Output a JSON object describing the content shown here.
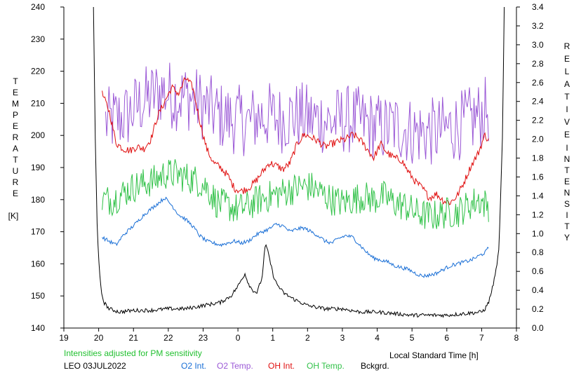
{
  "chart_data": {
    "type": "line",
    "x_ticks": [
      "19",
      "20",
      "21",
      "22",
      "23",
      "0",
      "1",
      "2",
      "3",
      "4",
      "5",
      "6",
      "7",
      "8"
    ],
    "xlabel": "Local Standard Time [h]",
    "xlim": [
      19,
      32
    ],
    "y_left": {
      "label_letters": [
        "T",
        "E",
        "M",
        "P",
        "E",
        "R",
        "A",
        "T",
        "U",
        "R",
        "E"
      ],
      "unit": "[K]",
      "lim": [
        140,
        240
      ],
      "ticks": [
        "140",
        "150",
        "160",
        "170",
        "180",
        "190",
        "200",
        "210",
        "220",
        "230",
        "240"
      ]
    },
    "y_right": {
      "label_word1": [
        "R",
        "E",
        "L",
        "A",
        "T",
        "I",
        "V",
        "E"
      ],
      "label_word2": [
        "I",
        "N",
        "T",
        "E",
        "N",
        "S",
        "I",
        "T",
        "Y"
      ],
      "lim": [
        0,
        3.4
      ],
      "ticks": [
        "0.0",
        "0.2",
        "0.4",
        "0.6",
        "0.8",
        "1.0",
        "1.2",
        "1.4",
        "1.6",
        "1.8",
        "2.0",
        "2.2",
        "2.4",
        "2.6",
        "2.8",
        "3.0",
        "3.2",
        "3.4"
      ]
    },
    "note": "Intensities adjusted for PM sensitivity",
    "station": "LEO 03JUL2022",
    "legend": [
      {
        "label": "O2 Int.",
        "color": "#1a6fd6"
      },
      {
        "label": "O2 Temp.",
        "color": "#9b59d6"
      },
      {
        "label": "OH Int.",
        "color": "#e01010"
      },
      {
        "label": "OH Temp.",
        "color": "#33c24a"
      },
      {
        "label": "Bckgrd.",
        "color": "#000000"
      }
    ],
    "colors": {
      "note": "#22c030",
      "o2_int": "#1a6fd6",
      "o2_temp": "#9b59d6",
      "oh_int": "#e01010",
      "oh_temp": "#33c24a",
      "bckgrd": "#000000"
    },
    "series": [
      {
        "key": "o2_temp",
        "axis": "left",
        "color": "#9b59d6",
        "noise": 11,
        "x": [
          20.2,
          20.5,
          20.8,
          21.0,
          21.2,
          21.5,
          21.8,
          22.0,
          22.3,
          22.6,
          22.9,
          23.2,
          23.5,
          23.8,
          24.0,
          24.3,
          24.6,
          24.9,
          25.2,
          25.5,
          25.8,
          26.1,
          26.4,
          26.7,
          27.0,
          27.3,
          27.6,
          27.9,
          28.2,
          28.5,
          28.8,
          29.1,
          29.4,
          29.7,
          30.0,
          30.3,
          30.6,
          30.9,
          31.2
        ],
        "y": [
          204,
          205,
          206,
          208,
          210,
          212,
          214,
          213,
          212,
          212,
          210,
          208,
          206,
          205,
          205,
          204,
          206,
          206,
          205,
          206,
          206,
          205,
          205,
          204,
          205,
          205,
          204,
          203,
          202,
          203,
          202,
          201,
          201,
          201,
          202,
          203,
          204,
          206,
          208
        ]
      },
      {
        "key": "oh_int",
        "axis": "right",
        "color": "#e01010",
        "noise": 0.04,
        "x": [
          20.1,
          20.3,
          20.5,
          20.7,
          20.9,
          21.1,
          21.3,
          21.5,
          21.7,
          21.9,
          22.1,
          22.3,
          22.5,
          22.7,
          22.9,
          23.1,
          23.3,
          23.5,
          23.7,
          23.9,
          24.1,
          24.3,
          24.5,
          24.7,
          24.9,
          25.1,
          25.3,
          25.5,
          25.7,
          25.9,
          26.1,
          26.3,
          26.5,
          26.7,
          26.9,
          27.1,
          27.3,
          27.5,
          27.7,
          27.9,
          28.1,
          28.3,
          28.5,
          28.7,
          28.9,
          29.1,
          29.3,
          29.5,
          29.7,
          29.9,
          30.1,
          30.3,
          30.5,
          30.7,
          30.9,
          31.1,
          31.2
        ],
        "y": [
          2.48,
          2.3,
          1.96,
          1.9,
          1.88,
          1.92,
          1.9,
          2.0,
          2.25,
          2.4,
          2.55,
          2.48,
          2.65,
          2.55,
          2.2,
          1.9,
          1.75,
          1.7,
          1.62,
          1.48,
          1.45,
          1.48,
          1.55,
          1.65,
          1.75,
          1.72,
          1.68,
          1.75,
          1.95,
          2.05,
          2.02,
          1.98,
          1.92,
          1.95,
          1.98,
          2.0,
          2.05,
          2.0,
          1.9,
          1.8,
          1.95,
          1.85,
          1.8,
          1.78,
          1.65,
          1.55,
          1.48,
          1.38,
          1.42,
          1.35,
          1.33,
          1.4,
          1.55,
          1.72,
          1.85,
          2.05,
          1.98
        ]
      },
      {
        "key": "oh_temp",
        "axis": "left",
        "color": "#33c24a",
        "noise": 5,
        "x": [
          20.1,
          20.4,
          20.7,
          21.0,
          21.3,
          21.6,
          21.9,
          22.2,
          22.5,
          22.8,
          23.1,
          23.4,
          23.7,
          24.0,
          24.3,
          24.6,
          24.9,
          25.2,
          25.5,
          25.8,
          26.1,
          26.4,
          26.7,
          27.0,
          27.3,
          27.6,
          27.9,
          28.2,
          28.5,
          28.8,
          29.1,
          29.4,
          29.7,
          30.0,
          30.3,
          30.6,
          30.9,
          31.2
        ],
        "y": [
          180,
          180,
          182,
          184,
          185,
          186,
          188,
          188,
          187,
          186,
          184,
          179,
          178,
          177,
          178,
          180,
          181,
          182,
          183,
          184,
          184,
          182,
          180,
          179,
          180,
          181,
          180,
          181,
          179,
          178,
          176,
          175,
          175,
          176,
          176,
          178,
          180,
          178
        ]
      },
      {
        "key": "o2_int",
        "axis": "right",
        "color": "#1a6fd6",
        "noise": 0.02,
        "x": [
          20.1,
          20.3,
          20.5,
          20.7,
          20.9,
          21.1,
          21.3,
          21.5,
          21.7,
          21.9,
          22.1,
          22.3,
          22.5,
          22.7,
          22.9,
          23.1,
          23.3,
          23.5,
          23.7,
          23.9,
          24.1,
          24.3,
          24.5,
          24.7,
          24.9,
          25.1,
          25.3,
          25.5,
          25.7,
          25.9,
          26.1,
          26.3,
          26.5,
          26.7,
          26.9,
          27.1,
          27.3,
          27.5,
          27.7,
          27.9,
          28.1,
          28.3,
          28.5,
          28.7,
          28.9,
          29.1,
          29.3,
          29.5,
          29.7,
          29.9,
          30.1,
          30.3,
          30.5,
          30.7,
          30.9,
          31.1,
          31.2
        ],
        "y": [
          0.96,
          0.92,
          0.88,
          0.98,
          1.05,
          1.12,
          1.2,
          1.26,
          1.32,
          1.38,
          1.3,
          1.2,
          1.15,
          1.08,
          0.98,
          0.92,
          0.9,
          0.88,
          0.9,
          0.92,
          0.9,
          0.92,
          0.98,
          1.02,
          1.05,
          1.1,
          1.08,
          1.02,
          1.05,
          1.06,
          1.02,
          0.98,
          0.92,
          0.9,
          0.95,
          0.98,
          0.96,
          0.88,
          0.8,
          0.74,
          0.72,
          0.7,
          0.66,
          0.64,
          0.62,
          0.58,
          0.55,
          0.56,
          0.58,
          0.62,
          0.66,
          0.68,
          0.7,
          0.72,
          0.76,
          0.8,
          0.85
        ]
      },
      {
        "key": "bckgrd",
        "axis": "left",
        "color": "#000000",
        "noise": 0.6,
        "x": [
          19.85,
          19.9,
          19.96,
          20.02,
          20.08,
          20.15,
          20.3,
          20.6,
          21.0,
          21.5,
          22.0,
          22.5,
          23.0,
          23.5,
          23.8,
          24.0,
          24.2,
          24.3,
          24.4,
          24.55,
          24.7,
          24.75,
          24.8,
          24.9,
          25.0,
          25.1,
          25.3,
          25.6,
          26.0,
          26.5,
          27.0,
          27.5,
          28.0,
          28.5,
          29.0,
          29.5,
          30.0,
          30.5,
          31.0,
          31.1,
          31.2,
          31.3,
          31.4,
          31.5,
          31.6,
          31.65
        ],
        "y": [
          240,
          200,
          170,
          158,
          151,
          148,
          146,
          145,
          145.5,
          145.5,
          146,
          146,
          147,
          148,
          150,
          153,
          157,
          154,
          152,
          151,
          156,
          163,
          166,
          162,
          157,
          154,
          151,
          149,
          147,
          146,
          146,
          145,
          145,
          144.5,
          144,
          144,
          144,
          144.5,
          145,
          146,
          148,
          152,
          157,
          165,
          200,
          240
        ]
      }
    ]
  }
}
